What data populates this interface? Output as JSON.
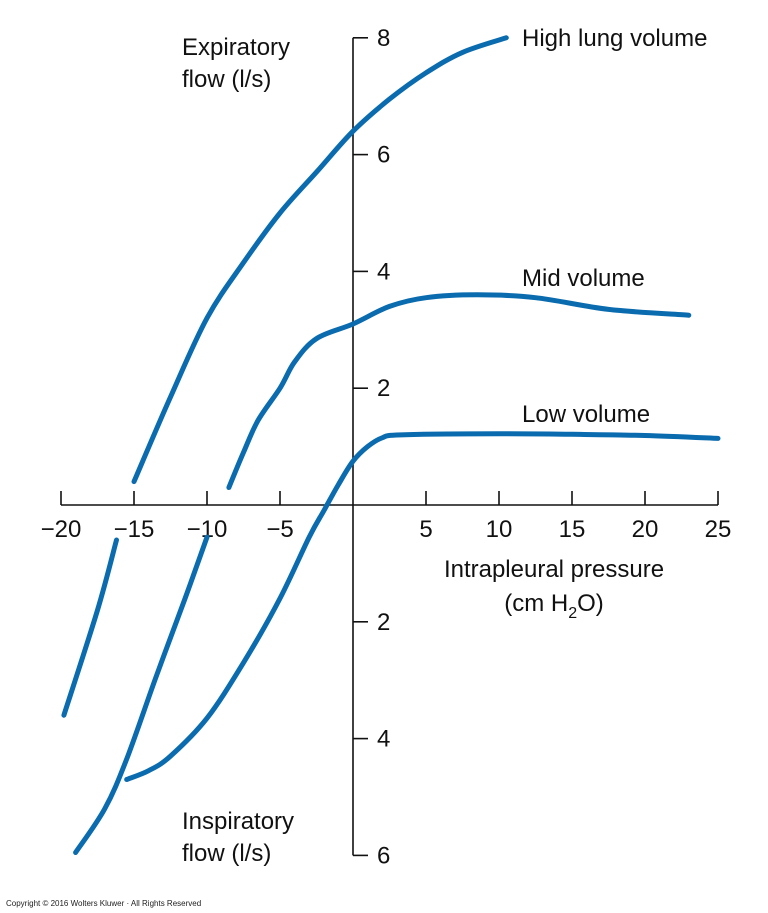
{
  "chart_data": {
    "type": "line",
    "x_axis": {
      "label": "Intrapleural pressure",
      "label_line2_prefix": "(cm H",
      "label_line2_sub": "2",
      "label_line2_suffix": "O)",
      "range": [
        -20,
        25
      ],
      "ticks": [
        -20,
        -15,
        -10,
        -5,
        5,
        10,
        15,
        20,
        25
      ],
      "tick_labels": [
        "−20",
        "−15",
        "−10",
        "−5",
        "5",
        "10",
        "15",
        "20",
        "25"
      ]
    },
    "y_axis_expiratory": {
      "label_line1": "Expiratory",
      "label_line2": "flow (l/s)",
      "range": [
        0,
        8
      ],
      "ticks": [
        2,
        4,
        6,
        8
      ],
      "tick_labels": [
        "2",
        "4",
        "6",
        "8"
      ]
    },
    "y_axis_inspiratory": {
      "label_line1": "Inspiratory",
      "label_line2": "flow (l/s)",
      "range": [
        0,
        6
      ],
      "ticks": [
        2,
        4,
        6
      ],
      "tick_labels": [
        "2",
        "4",
        "6"
      ]
    },
    "grid": false,
    "line_color": "#0A6BAF",
    "series": [
      {
        "name": "High lung volume",
        "segments": [
          {
            "x": [
              -15,
              -12.5,
              -10,
              -7.5,
              -5,
              -2.5,
              0,
              2.5,
              5,
              7.5,
              10.5
            ],
            "y": [
              0.4,
              1.85,
              3.2,
              4.15,
              5.0,
              5.7,
              6.4,
              6.95,
              7.4,
              7.75,
              8.0
            ]
          },
          {
            "x": [
              -16.2,
              -17.5,
              -19.8
            ],
            "y": [
              -0.6,
              -1.8,
              -3.6
            ]
          }
        ]
      },
      {
        "name": "Mid volume",
        "segments": [
          {
            "x": [
              -8.5,
              -7.5,
              -6.5,
              -5,
              -4,
              -2.5,
              0,
              2.5,
              5,
              8.5,
              12.5,
              17.5,
              23
            ],
            "y": [
              0.3,
              0.9,
              1.45,
              2.0,
              2.45,
              2.85,
              3.1,
              3.4,
              3.55,
              3.6,
              3.55,
              3.35,
              3.25
            ]
          },
          {
            "x": [
              -10,
              -11.5,
              -13.5,
              -15.5,
              -17,
              -19
            ],
            "y": [
              -0.55,
              -1.6,
              -2.95,
              -4.35,
              -5.2,
              -5.95
            ]
          }
        ]
      },
      {
        "name": "Low volume",
        "segments": [
          {
            "x": [
              -15.5,
              -14,
              -12.5,
              -10,
              -7.5,
              -5,
              -3,
              -2,
              -1,
              0,
              1,
              2,
              3.3,
              10,
              15,
              20,
              25
            ],
            "y": [
              -4.7,
              -4.55,
              -4.3,
              -3.65,
              -2.7,
              -1.6,
              -0.55,
              -0.1,
              0.35,
              0.75,
              1.0,
              1.15,
              1.2,
              1.22,
              1.21,
              1.19,
              1.14
            ]
          }
        ]
      }
    ]
  },
  "footer": {
    "copyright": "Copyright © 2016 Wolters Kluwer · All Rights Reserved"
  }
}
